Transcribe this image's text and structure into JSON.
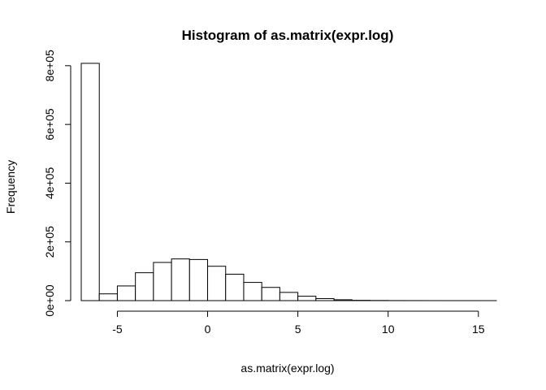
{
  "chart_data": {
    "type": "bar",
    "title": "Histogram of as.matrix(expr.log)",
    "xlabel": "as.matrix(expr.log)",
    "ylabel": "Frequency",
    "x_ticks": [
      -5,
      0,
      5,
      10,
      15
    ],
    "x_tick_labels": [
      "-5",
      "0",
      "5",
      "10",
      "15"
    ],
    "y_ticks": [
      0,
      200000,
      400000,
      600000,
      800000
    ],
    "y_tick_labels": [
      "0e+00",
      "2e+05",
      "4e+05",
      "6e+05",
      "8e+05"
    ],
    "xlim": [
      -7,
      16
    ],
    "ylim": [
      0,
      830000
    ],
    "bin_width": 1,
    "bins": [
      {
        "x0": -7,
        "x1": -6,
        "count": 808000
      },
      {
        "x0": -6,
        "x1": -5,
        "count": 23000
      },
      {
        "x0": -5,
        "x1": -4,
        "count": 50000
      },
      {
        "x0": -4,
        "x1": -3,
        "count": 95000
      },
      {
        "x0": -3,
        "x1": -2,
        "count": 130000
      },
      {
        "x0": -2,
        "x1": -1,
        "count": 142000
      },
      {
        "x0": -1,
        "x1": 0,
        "count": 140000
      },
      {
        "x0": 0,
        "x1": 1,
        "count": 117000
      },
      {
        "x0": 1,
        "x1": 2,
        "count": 90000
      },
      {
        "x0": 2,
        "x1": 3,
        "count": 62000
      },
      {
        "x0": 3,
        "x1": 4,
        "count": 45000
      },
      {
        "x0": 4,
        "x1": 5,
        "count": 28000
      },
      {
        "x0": 5,
        "x1": 6,
        "count": 15000
      },
      {
        "x0": 6,
        "x1": 7,
        "count": 7000
      },
      {
        "x0": 7,
        "x1": 8,
        "count": 3000
      },
      {
        "x0": 8,
        "x1": 9,
        "count": 1000
      },
      {
        "x0": 9,
        "x1": 10,
        "count": 500
      },
      {
        "x0": 10,
        "x1": 11,
        "count": 200
      },
      {
        "x0": 11,
        "x1": 12,
        "count": 100
      },
      {
        "x0": 12,
        "x1": 13,
        "count": 50
      },
      {
        "x0": 13,
        "x1": 14,
        "count": 20
      },
      {
        "x0": 14,
        "x1": 15,
        "count": 10
      },
      {
        "x0": 15,
        "x1": 16,
        "count": 5
      }
    ]
  }
}
